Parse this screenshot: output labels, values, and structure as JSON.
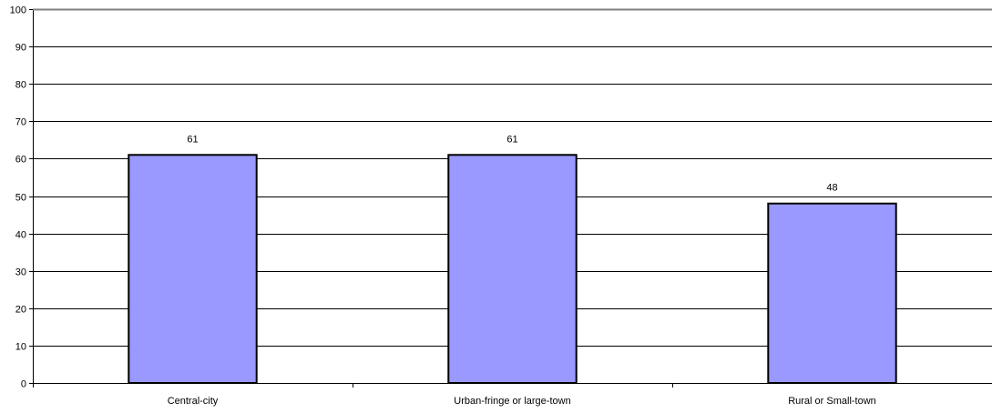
{
  "chart_data": {
    "type": "bar",
    "categories": [
      "Central-city",
      "Urban-fringe or large-town",
      "Rural or Small-town"
    ],
    "values": [
      61,
      61,
      48
    ],
    "data_labels": [
      "61",
      "61",
      "48"
    ],
    "title": "",
    "xlabel": "",
    "ylabel": "",
    "ylim": [
      0,
      100
    ],
    "yticks": [
      0,
      10,
      20,
      30,
      40,
      50,
      60,
      70,
      80,
      90,
      100
    ],
    "ytick_labels": [
      "0",
      "10",
      "20",
      "30",
      "40",
      "50",
      "60",
      "70",
      "80",
      "90",
      "100"
    ],
    "grid": true,
    "legend": "none",
    "bar_color": "#9999FF",
    "bar_edge_color": "#000000"
  }
}
